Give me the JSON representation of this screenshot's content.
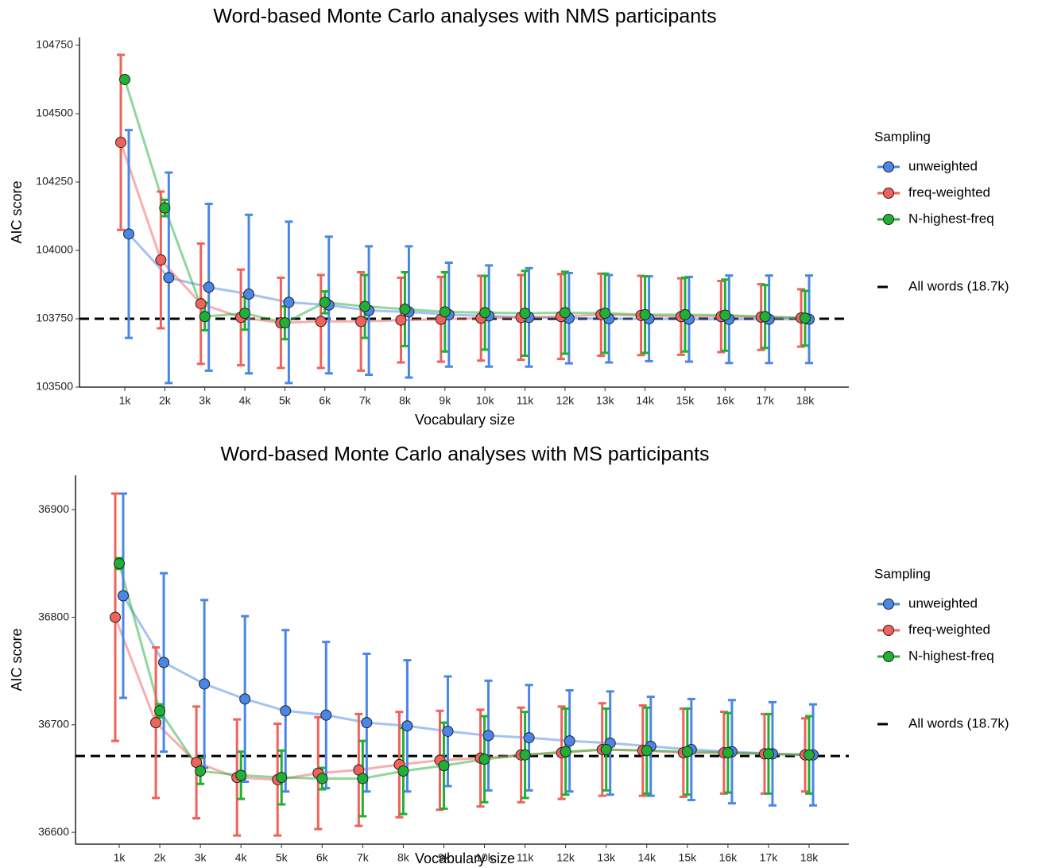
{
  "chart_data": [
    {
      "type": "line",
      "title": "Word-based Monte Carlo analyses with NMS participants",
      "x_label": "Vocabulary size",
      "y_label": "AIC score",
      "legend_title": "Sampling",
      "categories": [
        "1k",
        "2k",
        "3k",
        "4k",
        "5k",
        "6k",
        "7k",
        "8k",
        "9k",
        "10k",
        "11k",
        "12k",
        "13k",
        "14k",
        "15k",
        "16k",
        "17k",
        "18k"
      ],
      "ylim": [
        103500,
        104779
      ],
      "yticks": [
        103500,
        103750,
        104000,
        104250,
        104500,
        104750
      ],
      "reference": {
        "value": 103750,
        "label": "All words (18.7k)"
      },
      "series": [
        {
          "name": "unweighted",
          "color": "#4a86e8",
          "values": [
            104060,
            103900,
            103865,
            103840,
            103810,
            103800,
            103780,
            103775,
            103765,
            103760,
            103755,
            103752,
            103750,
            103750,
            103748,
            103748,
            103748,
            103748
          ],
          "error": [
            380,
            385,
            305,
            290,
            295,
            250,
            235,
            240,
            190,
            185,
            180,
            165,
            160,
            155,
            155,
            160,
            160,
            160
          ]
        },
        {
          "name": "freq-weighted",
          "color": "#f0625a",
          "values": [
            104395,
            103965,
            103805,
            103755,
            103735,
            103740,
            103740,
            103745,
            103748,
            103752,
            103755,
            103758,
            103765,
            103762,
            103758,
            103758,
            103756,
            103753
          ],
          "error": [
            320,
            250,
            220,
            175,
            165,
            170,
            180,
            155,
            155,
            155,
            155,
            155,
            150,
            145,
            140,
            130,
            120,
            105
          ]
        },
        {
          "name": "N-highest-freq",
          "color": "#21b035",
          "values": [
            104625,
            104155,
            103758,
            103770,
            103735,
            103810,
            103795,
            103785,
            103775,
            103772,
            103770,
            103772,
            103770,
            103765,
            103765,
            103763,
            103758,
            103752
          ],
          "error": [
            5,
            30,
            50,
            60,
            60,
            40,
            115,
            135,
            145,
            135,
            155,
            150,
            145,
            140,
            135,
            130,
            115,
            100
          ]
        }
      ]
    },
    {
      "type": "line",
      "title": "Word-based Monte Carlo analyses with MS participants",
      "x_label": "Vocabulary size",
      "y_label": "AIC score",
      "legend_title": "Sampling",
      "categories": [
        "1k",
        "2k",
        "3k",
        "4k",
        "5k",
        "6k",
        "7k",
        "8k",
        "9k",
        "10k",
        "11k",
        "12k",
        "13k",
        "14k",
        "15k",
        "16k",
        "17k",
        "18k"
      ],
      "ylim": [
        36589,
        36932
      ],
      "yticks": [
        36600,
        36700,
        36800,
        36900
      ],
      "reference": {
        "value": 36671,
        "label": "All words (18.7k)"
      },
      "series": [
        {
          "name": "unweighted",
          "color": "#4a86e8",
          "values": [
            36820,
            36758,
            36738,
            36724,
            36713,
            36709,
            36702,
            36699,
            36694,
            36690,
            36688,
            36685,
            36683,
            36680,
            36677,
            36675,
            36673,
            36672
          ],
          "error": [
            95,
            83,
            78,
            77,
            75,
            68,
            64,
            61,
            51,
            51,
            49,
            47,
            48,
            46,
            47,
            48,
            48,
            47
          ]
        },
        {
          "name": "freq-weighted",
          "color": "#f0625a",
          "values": [
            36800,
            36702,
            36665,
            36651,
            36649,
            36655,
            36658,
            36663,
            36667,
            36669,
            36672,
            36674,
            36677,
            36676,
            36674,
            36674,
            36673,
            36672
          ],
          "error": [
            115,
            70,
            52,
            54,
            52,
            52,
            52,
            49,
            46,
            45,
            44,
            43,
            43,
            42,
            41,
            38,
            37,
            34
          ]
        },
        {
          "name": "N-highest-freq",
          "color": "#21b035",
          "values": [
            36850,
            36713,
            36657,
            36653,
            36651,
            36650,
            36650,
            36657,
            36662,
            36668,
            36672,
            36675,
            36677,
            36676,
            36675,
            36674,
            36673,
            36672
          ],
          "error": [
            5,
            6,
            12,
            22,
            25,
            10,
            35,
            40,
            40,
            40,
            40,
            40,
            38,
            40,
            40,
            37,
            37,
            36
          ]
        }
      ]
    }
  ]
}
